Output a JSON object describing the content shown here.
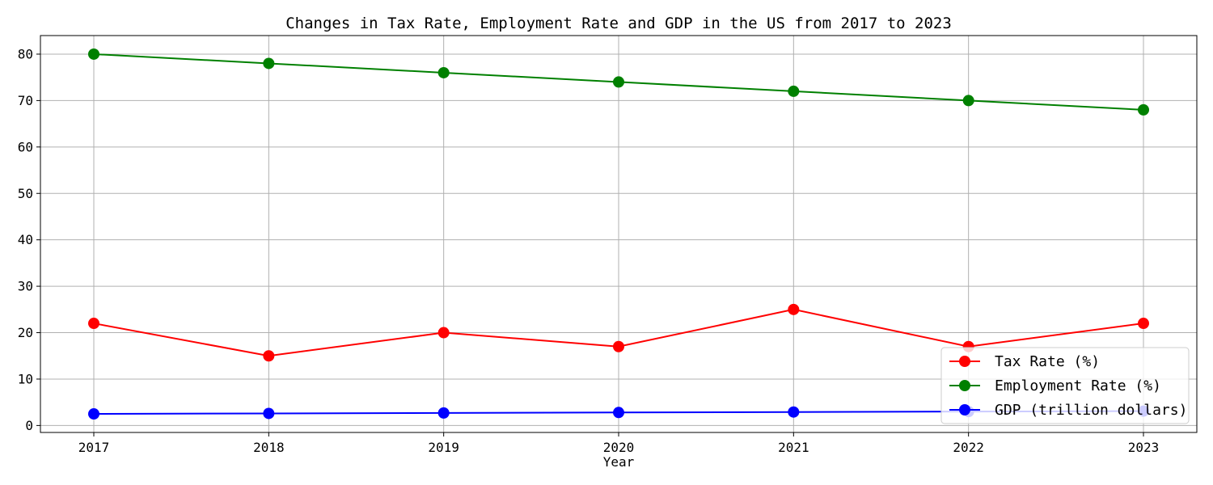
{
  "chart_data": {
    "type": "line",
    "title": "Changes in Tax Rate, Employment Rate and GDP in the US from 2017 to 2023",
    "xlabel": "Year",
    "ylabel": "",
    "categories": [
      "2017",
      "2018",
      "2019",
      "2020",
      "2021",
      "2022",
      "2023"
    ],
    "ylim": [
      -1.5,
      84
    ],
    "yticks": [
      0,
      10,
      20,
      30,
      40,
      50,
      60,
      70,
      80
    ],
    "grid": true,
    "legend_position": "bottom-right",
    "series": [
      {
        "name": "Tax Rate (%)",
        "color": "#ff0000",
        "marker": "circle",
        "values": [
          22,
          15,
          20,
          17,
          25,
          17,
          22
        ]
      },
      {
        "name": "Employment Rate (%)",
        "color": "#008000",
        "marker": "circle",
        "values": [
          80,
          78,
          76,
          74,
          72,
          70,
          68
        ]
      },
      {
        "name": "GDP (trillion dollars)",
        "color": "#0000ff",
        "marker": "circle",
        "values": [
          2.5,
          2.6,
          2.7,
          2.8,
          2.9,
          3.0,
          3.1
        ]
      }
    ]
  }
}
